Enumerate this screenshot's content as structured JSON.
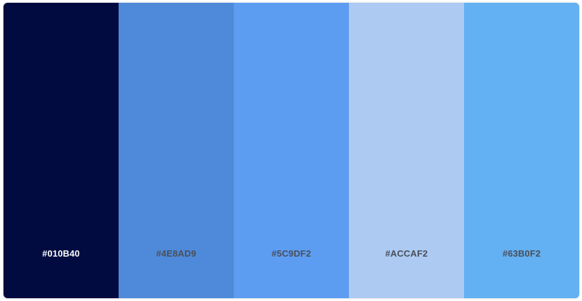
{
  "palette": {
    "swatches": [
      {
        "hex": "#010B40",
        "color": "#010B40",
        "label_color": "#ffffff"
      },
      {
        "hex": "#4E8AD9",
        "color": "#4E8AD9",
        "label_color": "#4a4f5a"
      },
      {
        "hex": "#5C9DF2",
        "color": "#5C9DF2",
        "label_color": "#4a4f5a"
      },
      {
        "hex": "#ACCAF2",
        "color": "#ACCAF2",
        "label_color": "#4a4f5a"
      },
      {
        "hex": "#63B0F2",
        "color": "#63B0F2",
        "label_color": "#4a4f5a"
      }
    ]
  }
}
